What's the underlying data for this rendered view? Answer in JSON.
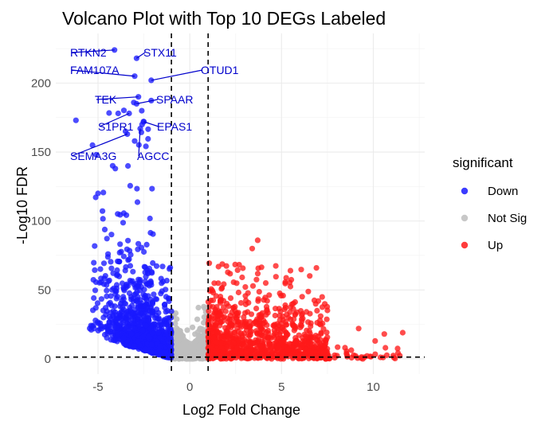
{
  "chart_data": {
    "type": "scatter",
    "title": "Volcano Plot with Top 10 DEGs Labeled",
    "xlabel": "Log2 Fold Change",
    "ylabel": "-Log10 FDR",
    "xlim": [
      -7.3,
      12.8
    ],
    "ylim": [
      -11,
      236
    ],
    "x_ticks": [
      -5,
      0,
      5,
      10
    ],
    "y_ticks": [
      0,
      50,
      100,
      150,
      200
    ],
    "x_tick_labels": [
      "-5",
      "0",
      "5",
      "10"
    ],
    "y_tick_labels": [
      "0",
      "50",
      "100",
      "150",
      "200"
    ],
    "grid": true,
    "legend": {
      "title": "significant",
      "position": "right",
      "entries": [
        {
          "label": "Down",
          "color": "#1a1aff"
        },
        {
          "label": "Not Sig",
          "color": "#bebebe"
        },
        {
          "label": "Up",
          "color": "#ff1a1a"
        }
      ]
    },
    "thresholds": {
      "log2fc": [
        -1,
        1
      ],
      "fdr_line": 1.3
    },
    "series": [
      {
        "name": "Down",
        "color": "#1a1aff",
        "clusters": [
          {
            "n": 700,
            "x_min": -4.2,
            "x_max": -1.0,
            "y_scale": 14,
            "y_max": 150
          },
          {
            "n": 300,
            "x_min": -5.5,
            "x_max": -2.0,
            "y_scale": 40,
            "y_max": 190
          }
        ]
      },
      {
        "name": "Not Sig",
        "color": "#bebebe",
        "clusters": [
          {
            "n": 550,
            "x_min": -1.0,
            "x_max": 1.0,
            "y_scale": 5,
            "y_max": 40
          }
        ]
      },
      {
        "name": "Up",
        "color": "#ff1a1a",
        "clusters": [
          {
            "n": 1000,
            "x_min": 1.0,
            "x_max": 7.5,
            "y_scale": 9,
            "y_max": 70
          },
          {
            "n": 60,
            "x_min": 5.0,
            "x_max": 11.5,
            "y_scale": 3,
            "y_max": 18
          }
        ]
      }
    ],
    "points": [
      {
        "series": "Down",
        "x": -6.2,
        "y": 173
      },
      {
        "series": "Down",
        "x": -5.3,
        "y": 155
      },
      {
        "series": "Down",
        "x": -5.1,
        "y": 148
      },
      {
        "series": "Down",
        "x": -4.2,
        "y": 140
      },
      {
        "series": "Down",
        "x": -5.0,
        "y": 120
      },
      {
        "series": "Down",
        "x": -3.9,
        "y": 178
      },
      {
        "series": "Down",
        "x": -3.5,
        "y": 165
      },
      {
        "series": "Down",
        "x": -3.0,
        "y": 158
      },
      {
        "series": "Down",
        "x": -2.6,
        "y": 170
      },
      {
        "series": "Up",
        "x": 3.7,
        "y": 86
      },
      {
        "series": "Up",
        "x": 3.4,
        "y": 80
      },
      {
        "series": "Up",
        "x": 6.9,
        "y": 66
      },
      {
        "series": "Up",
        "x": 7.0,
        "y": 42
      },
      {
        "series": "Up",
        "x": 9.2,
        "y": 22
      },
      {
        "series": "Up",
        "x": 10.6,
        "y": 18
      },
      {
        "series": "Up",
        "x": 11.6,
        "y": 19
      },
      {
        "series": "Up",
        "x": 10.1,
        "y": 13
      }
    ],
    "labeled_genes": [
      {
        "gene": "RTKN2",
        "x": -4.1,
        "y": 224
      },
      {
        "gene": "STX11",
        "x": -2.9,
        "y": 218
      },
      {
        "gene": "FAM107A",
        "x": -3.0,
        "y": 205
      },
      {
        "gene": "OTUD1",
        "x": -2.1,
        "y": 202
      },
      {
        "gene": "TEK",
        "x": -2.8,
        "y": 190
      },
      {
        "gene": "SPAAR",
        "x": -2.9,
        "y": 185
      },
      {
        "gene": "S1PR1",
        "x": -3.3,
        "y": 178
      },
      {
        "gene": "EPAS1",
        "x": -2.5,
        "y": 172
      },
      {
        "gene": "SEMA3G",
        "x": -3.4,
        "y": 163
      },
      {
        "gene": "AGCC",
        "x": -2.7,
        "y": 167
      }
    ],
    "labeled_gene_color": "#0000cc"
  }
}
